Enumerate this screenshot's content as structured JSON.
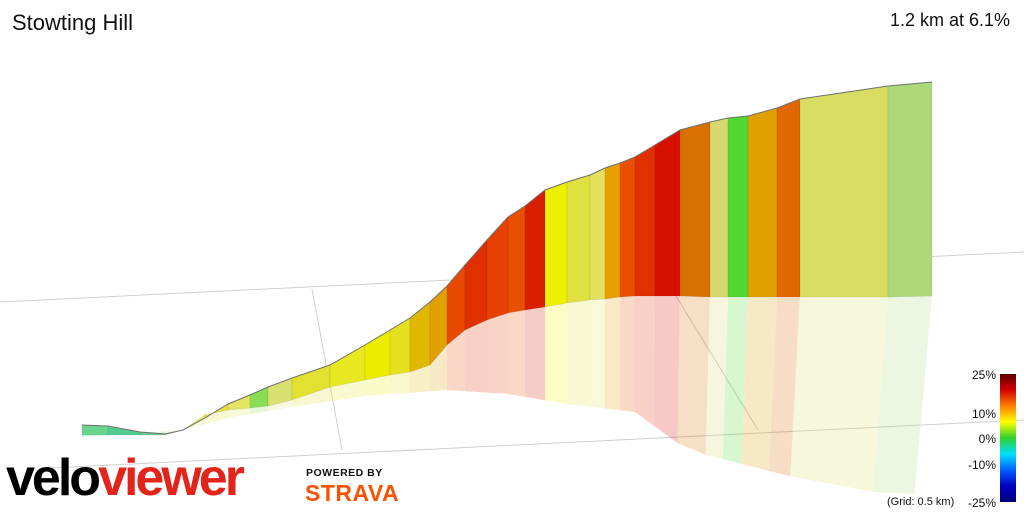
{
  "header": {
    "title": "Stowting Hill",
    "summary": "1.2 km at 6.1%"
  },
  "legend": {
    "labels": [
      "25%",
      "10%",
      "0%",
      "-10%",
      "-25%"
    ],
    "grid_note": "(Grid: 0.5 km)",
    "gradient_colors": [
      "#5a0000",
      "#d40000",
      "#ff8000",
      "#ffff00",
      "#30d030",
      "#00e0ff",
      "#0060ff",
      "#0000c0",
      "#000080"
    ]
  },
  "branding": {
    "logo_part1": "velo",
    "logo_part2": "viewer",
    "powered_by": "POWERED BY",
    "strava": "STRAVA"
  },
  "chart_data": {
    "type": "area",
    "title": "Stowting Hill",
    "xlabel": "",
    "ylabel": "",
    "grid": true,
    "segments": [
      {
        "gradient": 0.5,
        "color": "#6ad48c"
      },
      {
        "gradient": -1.5,
        "color": "#52cc90"
      },
      {
        "gradient": -0.5,
        "color": "#60d08a"
      },
      {
        "gradient": 2,
        "color": "#a8d87a"
      },
      {
        "gradient": 6,
        "color": "#e8e85a"
      },
      {
        "gradient": 7,
        "color": "#e8e040"
      },
      {
        "gradient": 6,
        "color": "#e4e460"
      },
      {
        "gradient": 1,
        "color": "#88dd55"
      },
      {
        "gradient": 5,
        "color": "#d8e070"
      },
      {
        "gradient": 7,
        "color": "#e2e030"
      },
      {
        "gradient": 8,
        "color": "#e8e820"
      },
      {
        "gradient": 9,
        "color": "#ecec00"
      },
      {
        "gradient": 8,
        "color": "#e6e020"
      },
      {
        "gradient": 10,
        "color": "#e0b800"
      },
      {
        "gradient": 12,
        "color": "#e0a000"
      },
      {
        "gradient": 15,
        "color": "#e84800"
      },
      {
        "gradient": 17,
        "color": "#e03000"
      },
      {
        "gradient": 16,
        "color": "#e84000"
      },
      {
        "gradient": 15,
        "color": "#e85000"
      },
      {
        "gradient": 18,
        "color": "#d82000"
      },
      {
        "gradient": 8,
        "color": "#eeee00"
      },
      {
        "gradient": 7,
        "color": "#e0e040"
      },
      {
        "gradient": 6,
        "color": "#e4e060"
      },
      {
        "gradient": 11,
        "color": "#e8a000"
      },
      {
        "gradient": 14,
        "color": "#e85000"
      },
      {
        "gradient": 16,
        "color": "#e03000"
      },
      {
        "gradient": 19,
        "color": "#d81000"
      },
      {
        "gradient": 12,
        "color": "#d87000"
      },
      {
        "gradient": 5,
        "color": "#d8d870"
      },
      {
        "gradient": 0,
        "color": "#50d830"
      },
      {
        "gradient": 10,
        "color": "#e0a000"
      },
      {
        "gradient": 13,
        "color": "#e06800"
      },
      {
        "gradient": 5,
        "color": "#d8dc60"
      },
      {
        "gradient": 2,
        "color": "#acd878"
      }
    ]
  }
}
